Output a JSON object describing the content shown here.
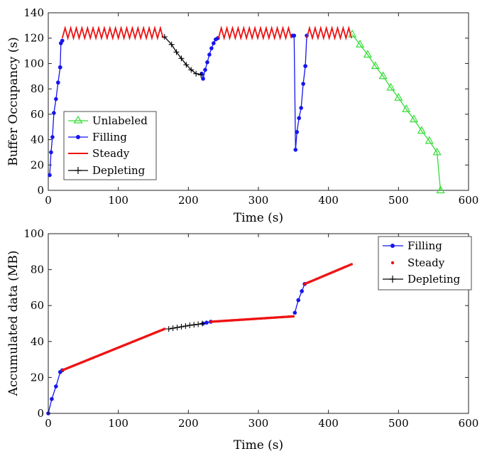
{
  "chart_data": [
    {
      "type": "line",
      "xlabel": "Time (s)",
      "ylabel": "Buffer Occupancy (s)",
      "xlim": [
        0,
        600
      ],
      "ylim": [
        0,
        140
      ],
      "xticks": [
        "0",
        "100",
        "200",
        "300",
        "400",
        "500",
        "600"
      ],
      "yticks": [
        "0",
        "20",
        "40",
        "60",
        "80",
        "100",
        "120",
        "140"
      ],
      "grid": false,
      "legend_position": "bottom-left",
      "series": [
        {
          "name": "Unlabeled",
          "color": "#33dd33",
          "marker": "triangle",
          "x": [
            434,
            445,
            456,
            467,
            478,
            489,
            500,
            511,
            522,
            533,
            544,
            555,
            560
          ],
          "y": [
            123,
            115,
            107,
            98,
            90,
            81,
            73,
            64,
            56,
            47,
            39,
            30,
            0
          ]
        },
        {
          "name": "Filling",
          "color": "#1515ee",
          "marker": "dot",
          "segments": [
            {
              "x": [
                2,
                4,
                6,
                8,
                11,
                14,
                17
              ],
              "y": [
                12,
                30,
                42,
                61,
                72,
                85,
                97
              ]
            },
            {
              "x": [
                17,
                18,
                20
              ],
              "y": [
                97,
                116,
                118
              ]
            },
            {
              "x": [
                219,
                221,
                224,
                227,
                230,
                233,
                236,
                239,
                242
              ],
              "y": [
                92,
                88,
                95,
                101,
                107,
                112,
                116,
                119,
                120
              ]
            },
            {
              "x": [
                349,
                351,
                353,
                355,
                358,
                361,
                364,
                367
              ],
              "y": [
                122,
                122,
                32,
                46,
                57,
                65,
                84,
                98
              ]
            },
            {
              "x": [
                367,
                369
              ],
              "y": [
                98,
                122
              ]
            }
          ]
        },
        {
          "name": "Steady",
          "color": "#ee1111",
          "style": "sawtooth",
          "ranges": [
            [
              20,
              166
            ],
            [
              243,
              349
            ],
            [
              369,
              434
            ]
          ],
          "low": 120,
          "high": 128
        },
        {
          "name": "Depleting",
          "color": "#000000",
          "marker": "plus",
          "x": [
            166,
            176,
            183,
            190,
            197,
            204,
            211,
            218
          ],
          "y": [
            121,
            115,
            109,
            104,
            99,
            95,
            92,
            91
          ]
        }
      ]
    },
    {
      "type": "scatter",
      "xlabel": "Time (s)",
      "ylabel": "Accumulated data (MB)",
      "xlim": [
        0,
        600
      ],
      "ylim": [
        0,
        100
      ],
      "xticks": [
        "0",
        "100",
        "200",
        "300",
        "400",
        "500",
        "600"
      ],
      "yticks": [
        "0",
        "20",
        "40",
        "60",
        "80",
        "100"
      ],
      "grid": false,
      "legend_position": "top-right",
      "series": [
        {
          "name": "Filling",
          "color": "#1515ee",
          "marker": "dot",
          "segments": [
            {
              "x": [
                0,
                5,
                11,
                17,
                20
              ],
              "y": [
                0,
                8,
                15,
                23,
                24
              ]
            },
            {
              "x": [
                221,
                226,
                232
              ],
              "y": [
                50,
                50.5,
                51
              ]
            },
            {
              "x": [
                352,
                357,
                362,
                366
              ],
              "y": [
                56,
                63,
                68,
                72
              ]
            }
          ]
        },
        {
          "name": "Steady",
          "color": "#ee1111",
          "marker": "dot-only",
          "segments": [
            {
              "x": [
                20,
                166
              ],
              "y": [
                24,
                47
              ]
            },
            {
              "x": [
                232,
                350
              ],
              "y": [
                51,
                54
              ]
            },
            {
              "x": [
                366,
                433
              ],
              "y": [
                72,
                83
              ]
            }
          ]
        },
        {
          "name": "Depleting",
          "color": "#000000",
          "marker": "plus",
          "x": [
            172,
            178,
            184,
            190,
            196,
            202,
            208,
            214,
            220
          ],
          "y": [
            47,
            47.4,
            47.8,
            48.2,
            48.6,
            49,
            49.3,
            49.6,
            50
          ]
        }
      ]
    }
  ]
}
